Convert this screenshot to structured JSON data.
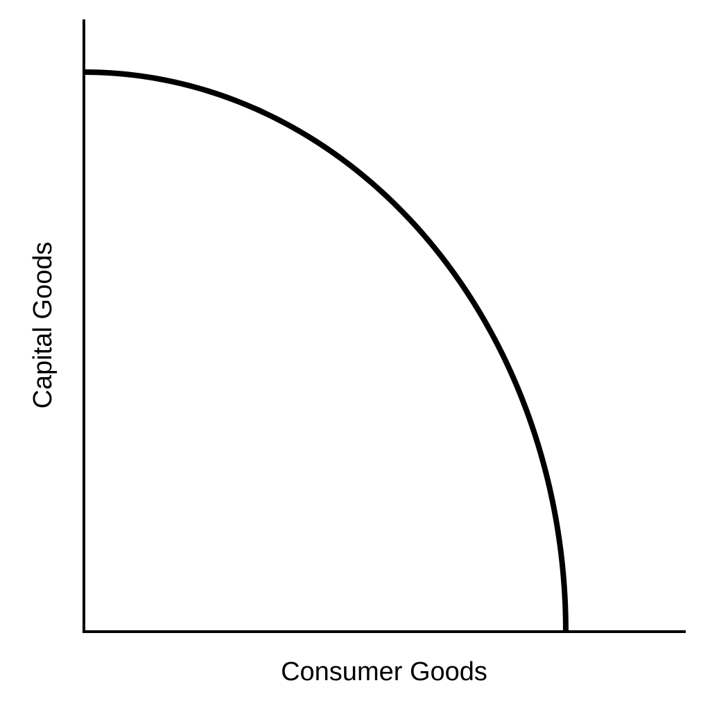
{
  "chart_data": {
    "type": "line",
    "title": "",
    "xlabel": "Consumer Goods",
    "ylabel": "Capital Goods",
    "grid": false,
    "axis_ticks": false,
    "series": [
      {
        "curve": "concave",
        "x": [
          0,
          0.2,
          0.4,
          0.6,
          0.8,
          0.9,
          0.95,
          1.0
        ],
        "y": [
          1.0,
          0.98,
          0.917,
          0.8,
          0.6,
          0.436,
          0.312,
          0.0
        ]
      }
    ],
    "colors": {
      "line": "#000000",
      "axes": "#000000",
      "background": "#ffffff"
    }
  }
}
